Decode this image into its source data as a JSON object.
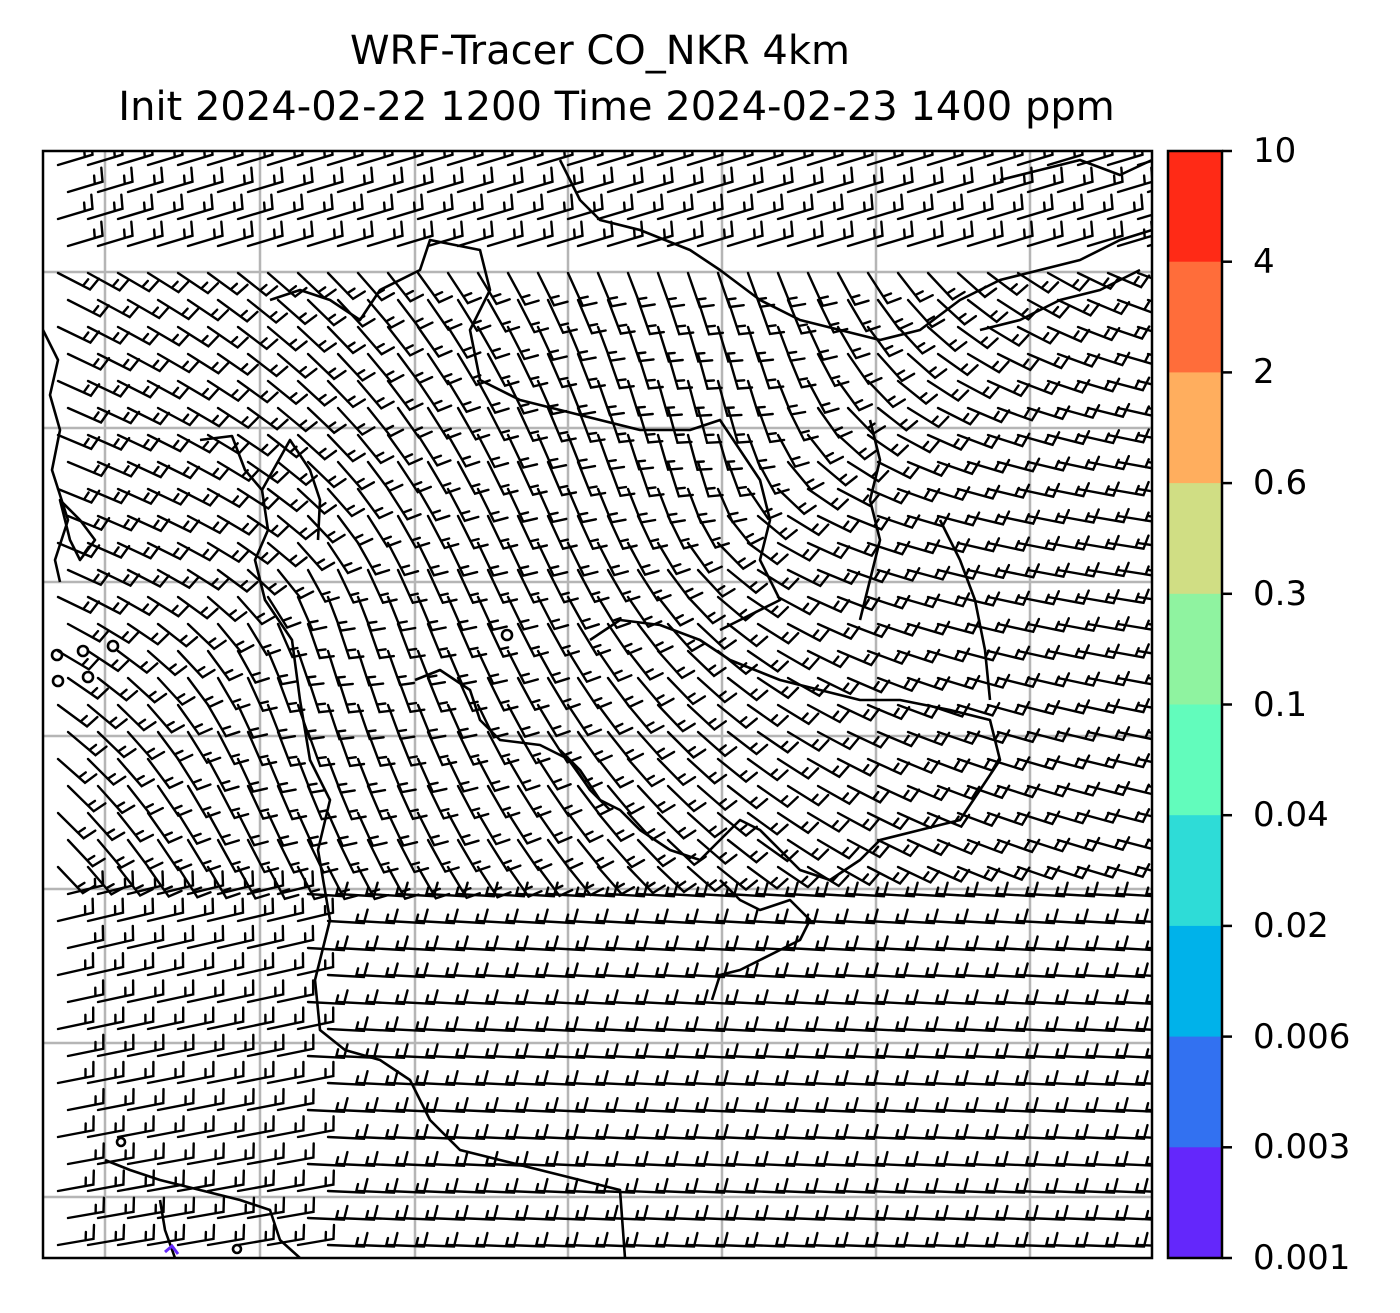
{
  "title": {
    "line1": "WRF-Tracer CO_NKR 4km",
    "line2": "Init 2024-02-22 1200 Time 2024-02-23 1400 ppm"
  },
  "colorbar": {
    "tick_labels": [
      "10",
      "4",
      "2",
      "0.6",
      "0.3",
      "0.1",
      "0.04",
      "0.02",
      "0.006",
      "0.003",
      "0.001"
    ],
    "colors": [
      "#ff2a16",
      "#ff6d3a",
      "#ffae5e",
      "#d0de84",
      "#8ff3a0",
      "#62fcbc",
      "#2edcd7",
      "#00b2ea",
      "#3271f1",
      "#6427fb"
    ]
  },
  "map": {
    "grid_color": "#b5b5b5",
    "coastline_color": "#000000",
    "barb_color": "#000000"
  }
}
